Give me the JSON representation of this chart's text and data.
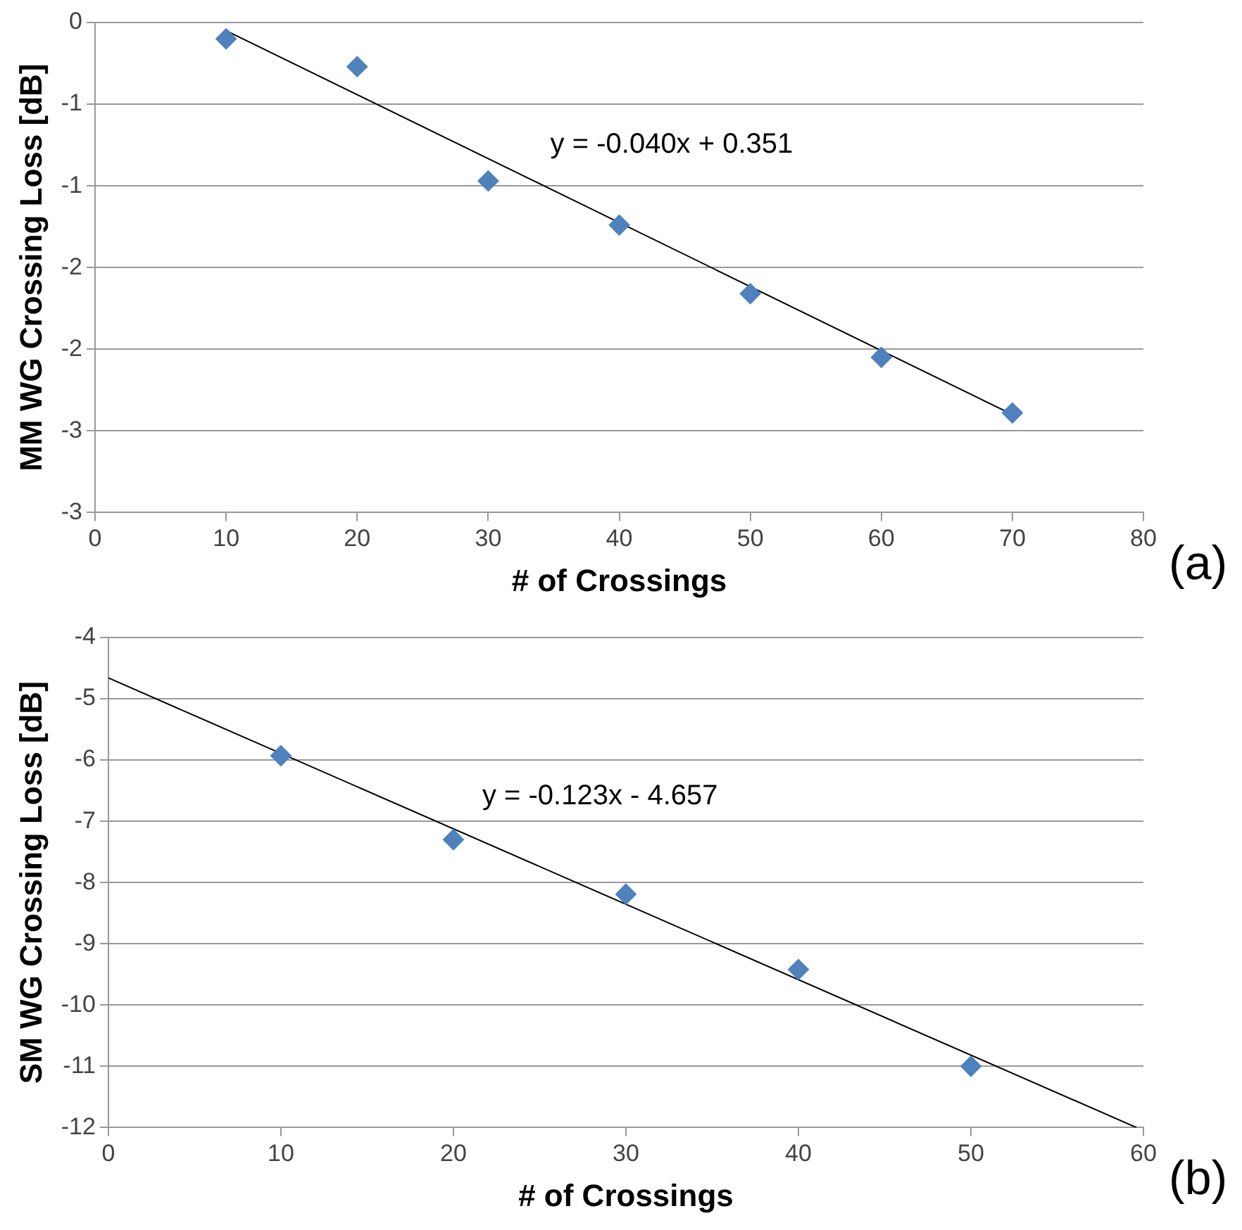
{
  "chart_data": [
    {
      "type": "scatter",
      "xlabel": "# of Crossings",
      "ylabel": "MM WG Crossing Loss [dB]",
      "xlim": [
        0,
        80
      ],
      "xticks": [
        0,
        10,
        20,
        30,
        40,
        50,
        60,
        70,
        80
      ],
      "ylim": [
        -3,
        0
      ],
      "yticks": [
        0,
        {
          "value": -0.5,
          "label": "-1"
        },
        -1,
        {
          "value": -1.5,
          "label": "-2"
        },
        -2,
        {
          "value": -2.5,
          "label": "-3"
        },
        -3
      ],
      "grid": "y",
      "legend": false,
      "marker": "diamond",
      "series": [
        {
          "color": "#4f81bd",
          "x": [
            10,
            20,
            30,
            40,
            50,
            60,
            70
          ],
          "values": [
            -0.1,
            -0.27,
            -0.97,
            -1.24,
            -1.66,
            -2.05,
            -2.39
          ]
        },
        {
          "type": "line",
          "color": "#000000",
          "marker": "none",
          "x": [
            10,
            70
          ],
          "values": [
            -0.05,
            -2.4
          ]
        }
      ],
      "annotations": [
        "y = -0.040x + 0.351",
        "(a)"
      ]
    },
    {
      "type": "scatter",
      "xlabel": "# of Crossings",
      "ylabel": "SM WG Crossing Loss [dB]",
      "xlim": [
        0,
        60
      ],
      "xticks": [
        0,
        10,
        20,
        30,
        40,
        50,
        60
      ],
      "ylim": [
        -12,
        -4
      ],
      "yticks": [
        -4,
        -5,
        -6,
        -7,
        -8,
        -9,
        -10,
        -11,
        -12
      ],
      "grid": "y",
      "legend": false,
      "marker": "diamond",
      "series": [
        {
          "color": "#4f81bd",
          "x": [
            10,
            20,
            30,
            40,
            50
          ],
          "values": [
            -5.93,
            -7.3,
            -8.19,
            -9.42,
            -11.0
          ]
        },
        {
          "type": "line",
          "color": "#000000",
          "marker": "none",
          "x": [
            0,
            59.6
          ],
          "values": [
            -4.66,
            -12.0
          ]
        }
      ],
      "annotations": [
        "y = -0.123x - 4.657",
        "(b)"
      ]
    }
  ]
}
